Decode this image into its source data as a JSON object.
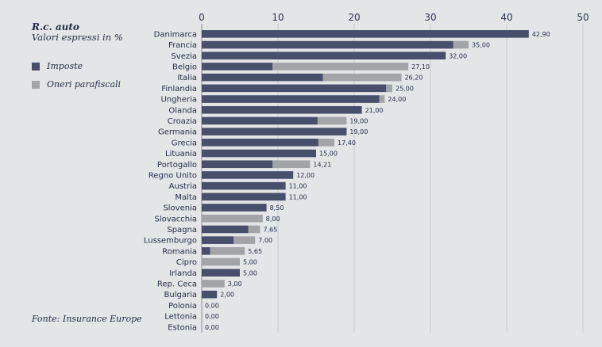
{
  "side": {
    "title": "R.c. auto",
    "subtitle": "Valori espressi in %",
    "source": "Fonte: Insurance Europe"
  },
  "colors": {
    "imposte": "#474f6b",
    "oneri": "#a3a4a7",
    "grid": "#c9cbd0",
    "axis": "#8c8f96"
  },
  "chart_data": {
    "type": "bar",
    "orientation": "horizontal",
    "stacked": true,
    "title": "R.c. auto",
    "subtitle": "Valori espressi in %",
    "xlim": [
      0,
      50
    ],
    "xticks": [
      0,
      10,
      20,
      30,
      40,
      50
    ],
    "grid": true,
    "legend_position": "left",
    "categories": [
      "Danimarca",
      "Francia",
      "Svezia",
      "Belgio",
      "Italia",
      "Finlandia",
      "Ungheria",
      "Olanda",
      "Croazia",
      "Germania",
      "Grecia",
      "Lituania",
      "Portogallo",
      "Regno Unito",
      "Austria",
      "Malta",
      "Slovenia",
      "Slovacchia",
      "Spagna",
      "Lussemburgo",
      "Romania",
      "Cipro",
      "Irlanda",
      "Rep. Ceca",
      "Bulgaria",
      "Polonia",
      "Lettonia",
      "Estonia"
    ],
    "series": [
      {
        "name": "Imposte",
        "values": [
          42.9,
          33,
          32,
          9.3,
          15.9,
          24.2,
          23.3,
          21,
          15.2,
          19,
          15.3,
          15,
          9.3,
          12,
          11,
          11,
          8.5,
          0,
          6.1,
          4.2,
          1.1,
          0,
          5,
          0,
          2,
          0,
          0,
          0
        ]
      },
      {
        "name": "Oneri parafiscali",
        "values": [
          0,
          2,
          0,
          17.8,
          10.3,
          0.8,
          0.7,
          0,
          3.8,
          0,
          2.1,
          0,
          4.91,
          0,
          0,
          0,
          0,
          8,
          1.55,
          2.8,
          4.55,
          5,
          0,
          3,
          0,
          0,
          0,
          0
        ]
      }
    ],
    "totals": [
      "42,90",
      "35,00",
      "32,00",
      "27,10",
      "26,20",
      "25,00",
      "24,00",
      "21,00",
      "19,00",
      "19,00",
      "17,40",
      "15,00",
      "14,21",
      "12,00",
      "11,00",
      "11,00",
      "8,50",
      "8,00",
      "7,65",
      "7,00",
      "5,65",
      "5,00",
      "5,00",
      "3,00",
      "2,00",
      "0,00",
      "0,00",
      "0,00"
    ]
  }
}
